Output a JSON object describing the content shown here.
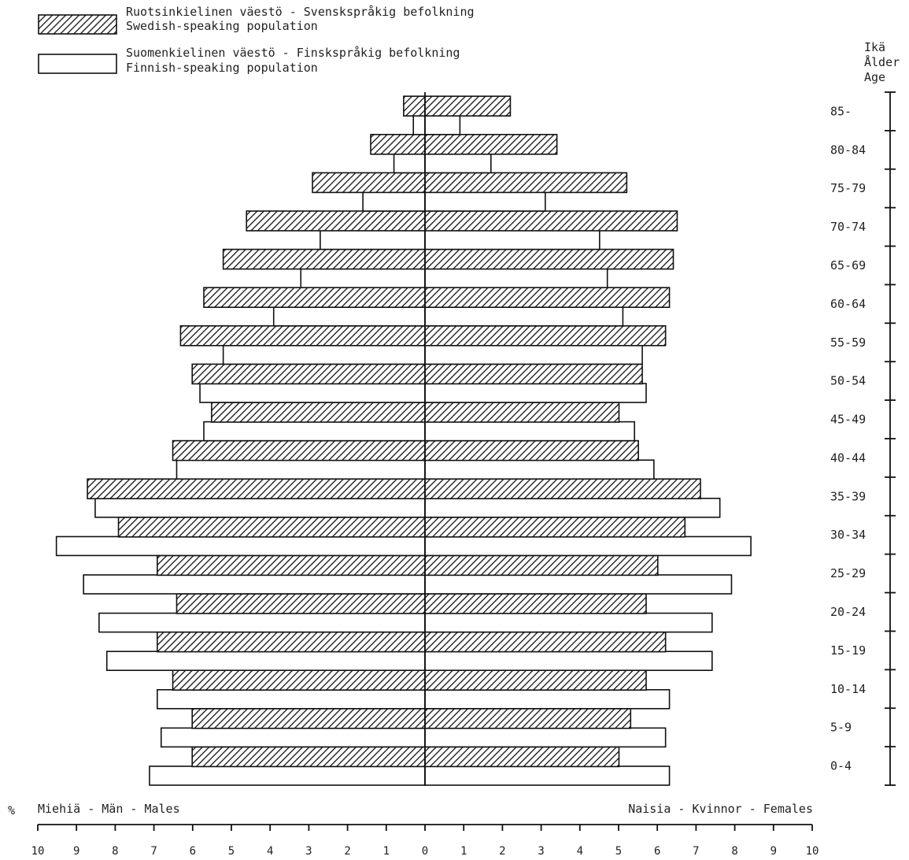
{
  "legend": {
    "swedish": {
      "line1": "Ruotsinkielinen väestö - Svenskspråkig befolkning",
      "line2": "Swedish-speaking population"
    },
    "finnish": {
      "line1": "Suomenkielinen väestö - Finskspråkig befolkning",
      "line2": "Finnish-speaking population"
    }
  },
  "age_axis_title": [
    "Ikä",
    "Ålder",
    "Age"
  ],
  "percent_symbol": "%",
  "males_label": "Miehiä - Män - Males",
  "females_label": "Naisia - Kvinnor - Females",
  "chart_data": {
    "type": "bar",
    "orientation": "horizontal",
    "subtype": "population pyramid",
    "unit": "%",
    "x_ticks_left": [
      "10",
      "9",
      "8",
      "7",
      "6",
      "5",
      "4",
      "3",
      "2",
      "1"
    ],
    "x_tick_center": "0",
    "x_ticks_right": [
      "1",
      "2",
      "3",
      "4",
      "5",
      "6",
      "7",
      "8",
      "9",
      "10"
    ],
    "xlim": [
      -10,
      10
    ],
    "categories": [
      "0-4",
      "5-9",
      "10-14",
      "15-19",
      "20-24",
      "25-29",
      "30-34",
      "35-39",
      "40-44",
      "45-49",
      "50-54",
      "55-59",
      "60-64",
      "65-69",
      "70-74",
      "75-79",
      "80-84",
      "85-"
    ],
    "series": [
      {
        "name": "Ruotsinkielinen väestö - Svenskspråkig befolkning",
        "style": "hatched",
        "males": [
          6.0,
          6.0,
          6.5,
          6.9,
          6.4,
          6.9,
          7.9,
          8.7,
          6.5,
          5.5,
          6.0,
          6.3,
          5.7,
          5.2,
          4.6,
          2.9,
          1.4,
          0.55
        ],
        "females": [
          5.0,
          5.3,
          5.7,
          6.2,
          5.7,
          6.0,
          6.7,
          7.1,
          5.5,
          5.0,
          5.6,
          6.2,
          6.3,
          6.4,
          6.5,
          5.2,
          3.4,
          2.2
        ]
      },
      {
        "name": "Suomenkielinen väestö - Finskspråkig befolkning",
        "style": "white",
        "males": [
          7.1,
          6.8,
          6.9,
          8.2,
          8.4,
          8.8,
          9.5,
          8.5,
          6.4,
          5.7,
          5.8,
          5.2,
          3.9,
          3.2,
          2.7,
          1.6,
          0.8,
          0.3
        ],
        "females": [
          6.3,
          6.2,
          6.3,
          7.4,
          7.4,
          7.9,
          8.4,
          7.6,
          5.9,
          5.4,
          5.7,
          5.6,
          5.1,
          4.7,
          4.5,
          3.1,
          1.7,
          0.9
        ]
      }
    ],
    "colors": {
      "hatch": "#111111",
      "outline": "#111111",
      "background": "#ffffff"
    }
  }
}
